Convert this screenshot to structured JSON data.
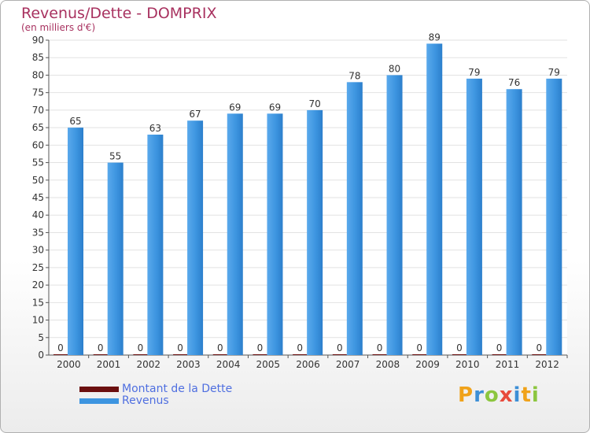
{
  "title": "Revenus/Dette - DOMPRIX",
  "subtitle": "(en milliers d'€)",
  "brand": {
    "name": "Proxiti",
    "letters": [
      {
        "char": "P",
        "color": "#f0a21a"
      },
      {
        "char": "r",
        "color": "#3d8fd6"
      },
      {
        "char": "o",
        "color": "#8cc63f"
      },
      {
        "char": "x",
        "color": "#e84a3c"
      },
      {
        "char": "i",
        "color": "#3d8fd6"
      },
      {
        "char": "t",
        "color": "#f0a21a"
      },
      {
        "char": "i",
        "color": "#8cc63f"
      }
    ]
  },
  "legend": [
    {
      "label": "Montant de la Dette",
      "color": "#6b0f0f"
    },
    {
      "label": "Revenus",
      "color": "#3d95e0"
    }
  ],
  "chart_data": {
    "type": "bar",
    "title": "Revenus/Dette - DOMPRIX",
    "ylabel": "(en milliers d'€)",
    "xlabel": "",
    "categories": [
      "2000",
      "2001",
      "2002",
      "2003",
      "2004",
      "2005",
      "2006",
      "2007",
      "2008",
      "2009",
      "2010",
      "2011",
      "2012"
    ],
    "ylim": [
      0,
      90
    ],
    "yticks": [
      0,
      5,
      10,
      15,
      20,
      25,
      30,
      35,
      40,
      45,
      50,
      55,
      60,
      65,
      70,
      75,
      80,
      85,
      90
    ],
    "grid": true,
    "series": [
      {
        "name": "Montant de la Dette",
        "color": "#6b0f0f",
        "values": [
          0,
          0,
          0,
          0,
          0,
          0,
          0,
          0,
          0,
          0,
          0,
          0,
          0
        ]
      },
      {
        "name": "Revenus",
        "color": "#3d95e0",
        "values": [
          65,
          55,
          63,
          67,
          69,
          69,
          70,
          78,
          80,
          89,
          79,
          76,
          79
        ]
      }
    ]
  }
}
